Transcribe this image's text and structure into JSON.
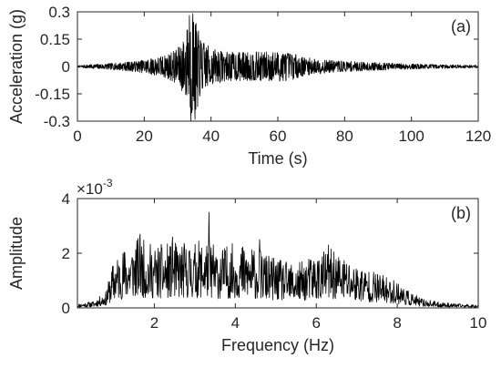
{
  "chart_data": [
    {
      "type": "line",
      "panel_label": "(a)",
      "xlabel": "Time (s)",
      "ylabel": "Acceleration (g)",
      "xlim": [
        0,
        120
      ],
      "ylim": [
        -0.3,
        0.3
      ],
      "xticks": [
        0,
        20,
        40,
        60,
        80,
        100,
        120
      ],
      "xtick_labels": [
        "0",
        "20",
        "40",
        "60",
        "80",
        "100",
        "120"
      ],
      "yticks": [
        0.3,
        0.15,
        0,
        -0.15,
        -0.3
      ],
      "ytick_labels": [
        "0.3",
        "0.15",
        "0",
        "-0.15",
        "-0.3"
      ],
      "series": [
        {
          "color": "#000000",
          "envelope": {
            "description": "amplitude envelope of the acceleration record",
            "x": [
              0,
              3,
              8,
              12,
              18,
              22,
              26,
              30,
              32,
              33.5,
              34.5,
              35.5,
              37,
              40,
              45,
              50,
              55,
              60,
              64,
              68,
              75,
              85,
              95,
              105,
              112,
              120
            ],
            "amplitude": [
              0.004,
              0.01,
              0.015,
              0.02,
              0.03,
              0.045,
              0.06,
              0.1,
              0.16,
              0.26,
              0.28,
              0.24,
              0.15,
              0.1,
              0.08,
              0.08,
              0.08,
              0.085,
              0.075,
              0.05,
              0.035,
              0.025,
              0.018,
              0.012,
              0.01,
              0.008
            ]
          },
          "peaks": [
            {
              "x": 33.5,
              "y": 0.28
            },
            {
              "x": 34.6,
              "y": 0.29
            },
            {
              "x": 34.0,
              "y": -0.3
            },
            {
              "x": 35.2,
              "y": -0.29
            },
            {
              "x": 33.0,
              "y": 0.2
            },
            {
              "x": 36.0,
              "y": -0.22
            }
          ]
        }
      ],
      "grid": false,
      "axis_color": "#262626"
    },
    {
      "type": "line",
      "panel_label": "(b)",
      "xlabel": "Frequency (Hz)",
      "ylabel": "Amplitude",
      "y_exponent_label": "×10",
      "y_exponent_power": "-3",
      "xlim": [
        0.1,
        10
      ],
      "ylim": [
        0,
        4
      ],
      "xticks": [
        2,
        4,
        6,
        8,
        10
      ],
      "xtick_labels": [
        "2",
        "4",
        "6",
        "8",
        "10"
      ],
      "yticks": [
        0,
        2,
        4
      ],
      "ytick_labels": [
        "0",
        "2",
        "4"
      ],
      "series": [
        {
          "color": "#000000",
          "envelope": {
            "description": "spectral amplitude envelope (units of 1e-3)",
            "x": [
              0.1,
              0.5,
              0.8,
              1.0,
              1.3,
              1.6,
              2.0,
              2.5,
              3.0,
              3.3,
              3.6,
              4.0,
              4.5,
              5.0,
              5.5,
              6.0,
              6.3,
              6.6,
              7.0,
              7.5,
              8.0,
              8.3,
              8.6,
              9.0,
              9.5,
              10.0
            ],
            "amplitude": [
              0.15,
              0.25,
              0.6,
              1.8,
              2.3,
              2.6,
              2.3,
              2.4,
              2.4,
              2.6,
              2.2,
              2.4,
              2.2,
              1.8,
              1.6,
              2.0,
              2.2,
              2.0,
              1.6,
              1.3,
              1.0,
              0.6,
              0.35,
              0.22,
              0.15,
              0.12
            ]
          },
          "peaks": [
            {
              "x": 3.35,
              "y": 3.5
            },
            {
              "x": 1.65,
              "y": 2.7
            },
            {
              "x": 2.45,
              "y": 2.6
            },
            {
              "x": 6.3,
              "y": 2.3
            },
            {
              "x": 4.6,
              "y": 2.5
            }
          ]
        }
      ],
      "grid": false,
      "axis_color": "#262626"
    }
  ]
}
